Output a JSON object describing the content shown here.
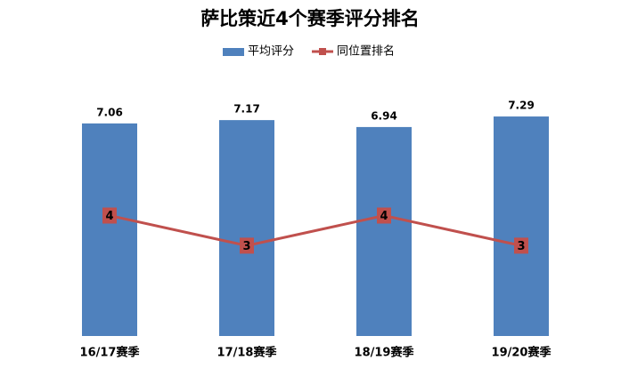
{
  "chart_data": {
    "type": "bar",
    "title": "萨比策近4个赛季评分排名",
    "categories": [
      "16/17赛季",
      "17/18赛季",
      "18/19赛季",
      "19/20赛季"
    ],
    "series": [
      {
        "name": "平均评分",
        "type": "bar",
        "color": "#4f81bd",
        "values": [
          7.06,
          7.17,
          6.94,
          7.29
        ]
      },
      {
        "name": "同位置排名",
        "type": "line",
        "color": "#c0504d",
        "axis": "y2",
        "values": [
          4,
          3,
          4,
          3
        ]
      }
    ],
    "ylim": [
      0,
      8
    ],
    "y2lim": [
      0,
      8
    ],
    "legend": "top"
  }
}
